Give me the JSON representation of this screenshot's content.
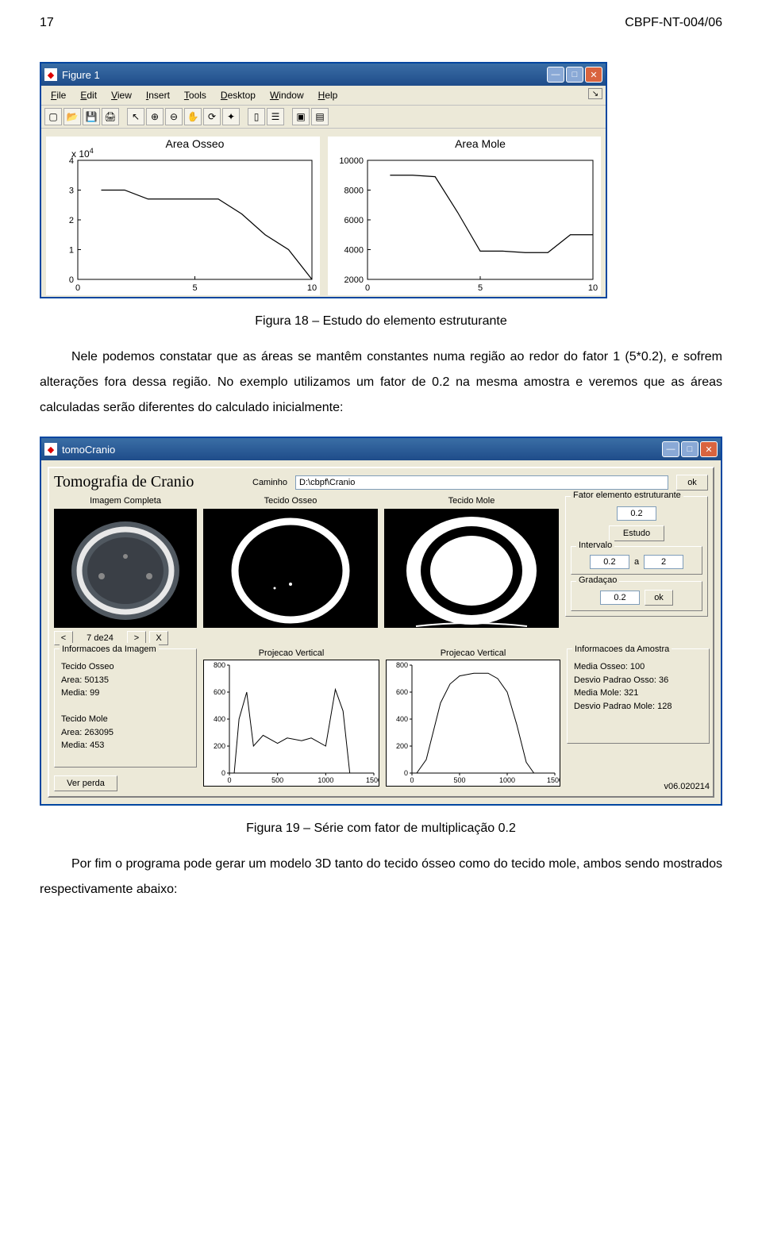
{
  "header": {
    "page_num": "17",
    "doc_id": "CBPF-NT-004/06"
  },
  "fig1": {
    "window_title": "Figure 1",
    "menus": [
      "File",
      "Edit",
      "View",
      "Insert",
      "Tools",
      "Desktop",
      "Window",
      "Help"
    ],
    "plot1": {
      "title": "Area Osseo",
      "exp_label": "x 10",
      "exp_sup": "4",
      "ylim": [
        0,
        4
      ],
      "yticks": [
        0,
        1,
        2,
        3,
        4
      ],
      "xlim": [
        0,
        10
      ],
      "xticks": [
        0,
        5,
        10
      ],
      "points": [
        [
          1,
          3
        ],
        [
          2,
          3
        ],
        [
          3,
          2.7
        ],
        [
          4,
          2.7
        ],
        [
          5,
          2.7
        ],
        [
          6,
          2.7
        ],
        [
          7,
          2.2
        ],
        [
          8,
          1.5
        ],
        [
          9,
          1.0
        ],
        [
          10,
          0
        ]
      ],
      "line_color": "#000000"
    },
    "plot2": {
      "title": "Area Mole",
      "ylim": [
        2000,
        10000
      ],
      "yticks": [
        2000,
        4000,
        6000,
        8000,
        10000
      ],
      "xlim": [
        0,
        10
      ],
      "xticks": [
        0,
        5,
        10
      ],
      "points": [
        [
          1,
          9000
        ],
        [
          2,
          9000
        ],
        [
          3,
          8900
        ],
        [
          4,
          6500
        ],
        [
          5,
          3900
        ],
        [
          6,
          3900
        ],
        [
          7,
          3800
        ],
        [
          8,
          3800
        ],
        [
          9,
          5000
        ],
        [
          10,
          5000
        ]
      ],
      "line_color": "#000000"
    }
  },
  "caption1": "Figura 18 – Estudo do elemento estruturante",
  "para": "Nele podemos constatar que as áreas se mantêm constantes numa região ao redor do fator 1 (5*0.2), e sofrem alterações fora dessa região. No exemplo utilizamos um fator de 0.2 na mesma amostra e veremos que as áreas calculadas serão diferentes do calculado inicialmente:",
  "tomo": {
    "window_title": "tomoCranio",
    "main_title": "Tomografia de Cranio",
    "path_label": "Caminho",
    "path_value": "D:\\cbpf\\Cranio",
    "ok_label": "ok",
    "img_labels": {
      "completa": "Imagem Completa",
      "osseo": "Tecido Osseo",
      "mole": "Tecido Mole"
    },
    "fator_group": "Fator elemento estruturante",
    "fator_value": "0.2",
    "estudo_label": "Estudo",
    "intervalo_group": "Intervalo",
    "intervalo_from": "0.2",
    "intervalo_a": "a",
    "intervalo_to": "2",
    "gradacao_group": "Gradaçao",
    "gradacao_value": "0.2",
    "nav": {
      "prev": "<",
      "next": ">",
      "close": "X",
      "text": "7 de24"
    },
    "info_img_title": "Informacoes da Imagem",
    "info_img_lines": [
      "Tecido Osseo",
      "Area: 50135",
      "Media: 99",
      "",
      "Tecido Mole",
      "Area: 263095",
      "Media: 453"
    ],
    "ver_perda": "Ver perda",
    "proj_label": "Projecao Vertical",
    "proj1": {
      "xlim": [
        0,
        1500
      ],
      "xticks": [
        0,
        500,
        1000,
        1500
      ],
      "ylim": [
        0,
        800
      ],
      "yticks": [
        0,
        200,
        400,
        600,
        800
      ],
      "points": [
        [
          50,
          0
        ],
        [
          100,
          400
        ],
        [
          180,
          600
        ],
        [
          250,
          200
        ],
        [
          350,
          280
        ],
        [
          500,
          220
        ],
        [
          600,
          260
        ],
        [
          750,
          240
        ],
        [
          850,
          260
        ],
        [
          1000,
          200
        ],
        [
          1100,
          620
        ],
        [
          1180,
          460
        ],
        [
          1250,
          0
        ]
      ]
    },
    "proj2": {
      "xlim": [
        0,
        1500
      ],
      "xticks": [
        0,
        500,
        1000,
        1500
      ],
      "ylim": [
        0,
        800
      ],
      "yticks": [
        0,
        200,
        400,
        600,
        800
      ],
      "points": [
        [
          50,
          0
        ],
        [
          150,
          100
        ],
        [
          300,
          520
        ],
        [
          400,
          660
        ],
        [
          500,
          720
        ],
        [
          650,
          740
        ],
        [
          800,
          740
        ],
        [
          900,
          700
        ],
        [
          1000,
          600
        ],
        [
          1100,
          360
        ],
        [
          1200,
          80
        ],
        [
          1280,
          0
        ]
      ]
    },
    "info_amostra_title": "Informacoes da Amostra",
    "info_amostra_lines": [
      "Media Osseo: 100",
      "Desvio Padrao Osso: 36",
      "Media Mole: 321",
      "Desvio Padrao Mole: 128"
    ],
    "version": "v06.020214"
  },
  "caption2": "Figura 19 – Série com fator de multiplicação 0.2",
  "para2": "Por fim o programa pode gerar um modelo 3D tanto do tecido ósseo como do tecido mole, ambos sendo mostrados respectivamente abaixo:"
}
